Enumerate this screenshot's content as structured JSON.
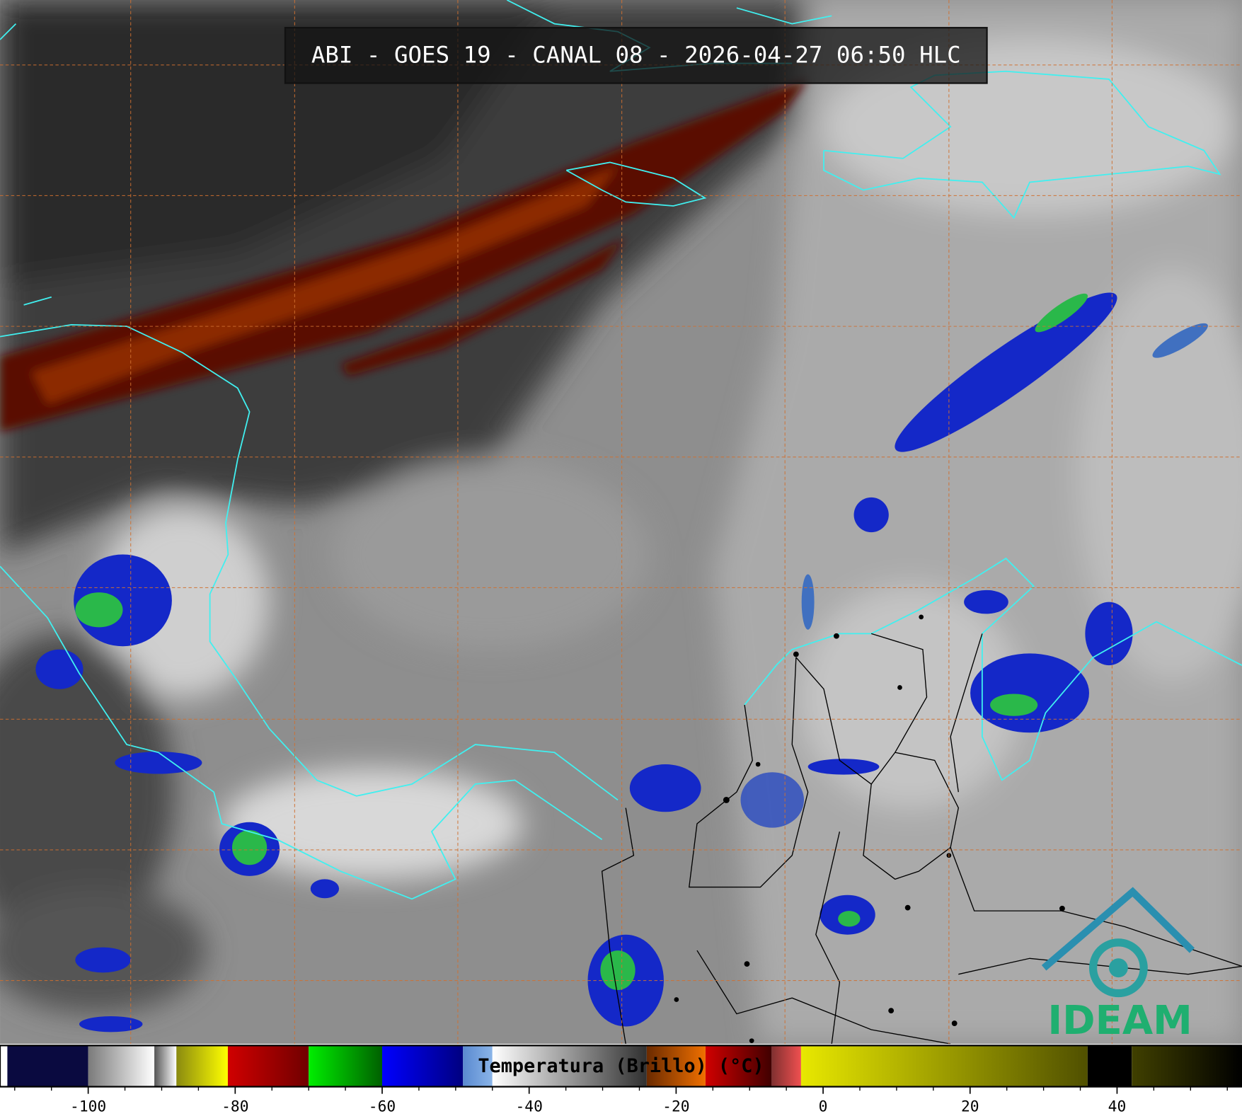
{
  "title": "ABI - GOES 19 - CANAL 08 - 2026-04-27 06:50 HLC",
  "colorbar": {
    "label": "Temperatura (Brillo) (°C)",
    "xlim": [
      -112,
      57
    ],
    "xticks": [
      -100,
      -80,
      -60,
      -40,
      -20,
      0,
      20,
      40
    ],
    "minor_xticks": [
      -110,
      -105,
      -95,
      -90,
      -85,
      -75,
      -70,
      -65,
      -55,
      -50,
      -45,
      -35,
      -30,
      -25,
      -15,
      -10,
      -5,
      5,
      10,
      15,
      25,
      30,
      35,
      45,
      50,
      55
    ],
    "segments": [
      {
        "from": -112,
        "to": -111,
        "colors": [
          "#ffffff",
          "#ffffff"
        ]
      },
      {
        "from": -111,
        "to": -100,
        "colors": [
          "#0a0a40",
          "#0a0a40"
        ]
      },
      {
        "from": -100,
        "to": -91,
        "colors": [
          "#7a7a7a",
          "#ffffff"
        ]
      },
      {
        "from": -91,
        "to": -88,
        "colors": [
          "#555555",
          "#ffffff"
        ]
      },
      {
        "from": -88,
        "to": -81,
        "colors": [
          "#8a8a10",
          "#ffff00"
        ]
      },
      {
        "from": -81,
        "to": -70,
        "colors": [
          "#d00000",
          "#700000"
        ]
      },
      {
        "from": -70,
        "to": -60,
        "colors": [
          "#00ee00",
          "#006000"
        ]
      },
      {
        "from": -60,
        "to": -49,
        "colors": [
          "#0000ff",
          "#000080"
        ]
      },
      {
        "from": -49,
        "to": -45,
        "colors": [
          "#5a8ad0",
          "#8ab4e8"
        ]
      },
      {
        "from": -45,
        "to": -24,
        "colors": [
          "#ffffff",
          "#303030"
        ]
      },
      {
        "from": -24,
        "to": -16,
        "colors": [
          "#6a2a00",
          "#f07000"
        ]
      },
      {
        "from": -16,
        "to": -7,
        "colors": [
          "#d00000",
          "#400000"
        ]
      },
      {
        "from": -7,
        "to": -3,
        "colors": [
          "#803030",
          "#f05050"
        ]
      },
      {
        "from": -3,
        "to": 36,
        "colors": [
          "#e8e800",
          "#505000"
        ]
      },
      {
        "from": 36,
        "to": 42,
        "colors": [
          "#000000",
          "#000000"
        ]
      },
      {
        "from": 42,
        "to": 57,
        "colors": [
          "#404000",
          "#000000"
        ]
      }
    ]
  },
  "logo": {
    "text": "IDEAM"
  }
}
